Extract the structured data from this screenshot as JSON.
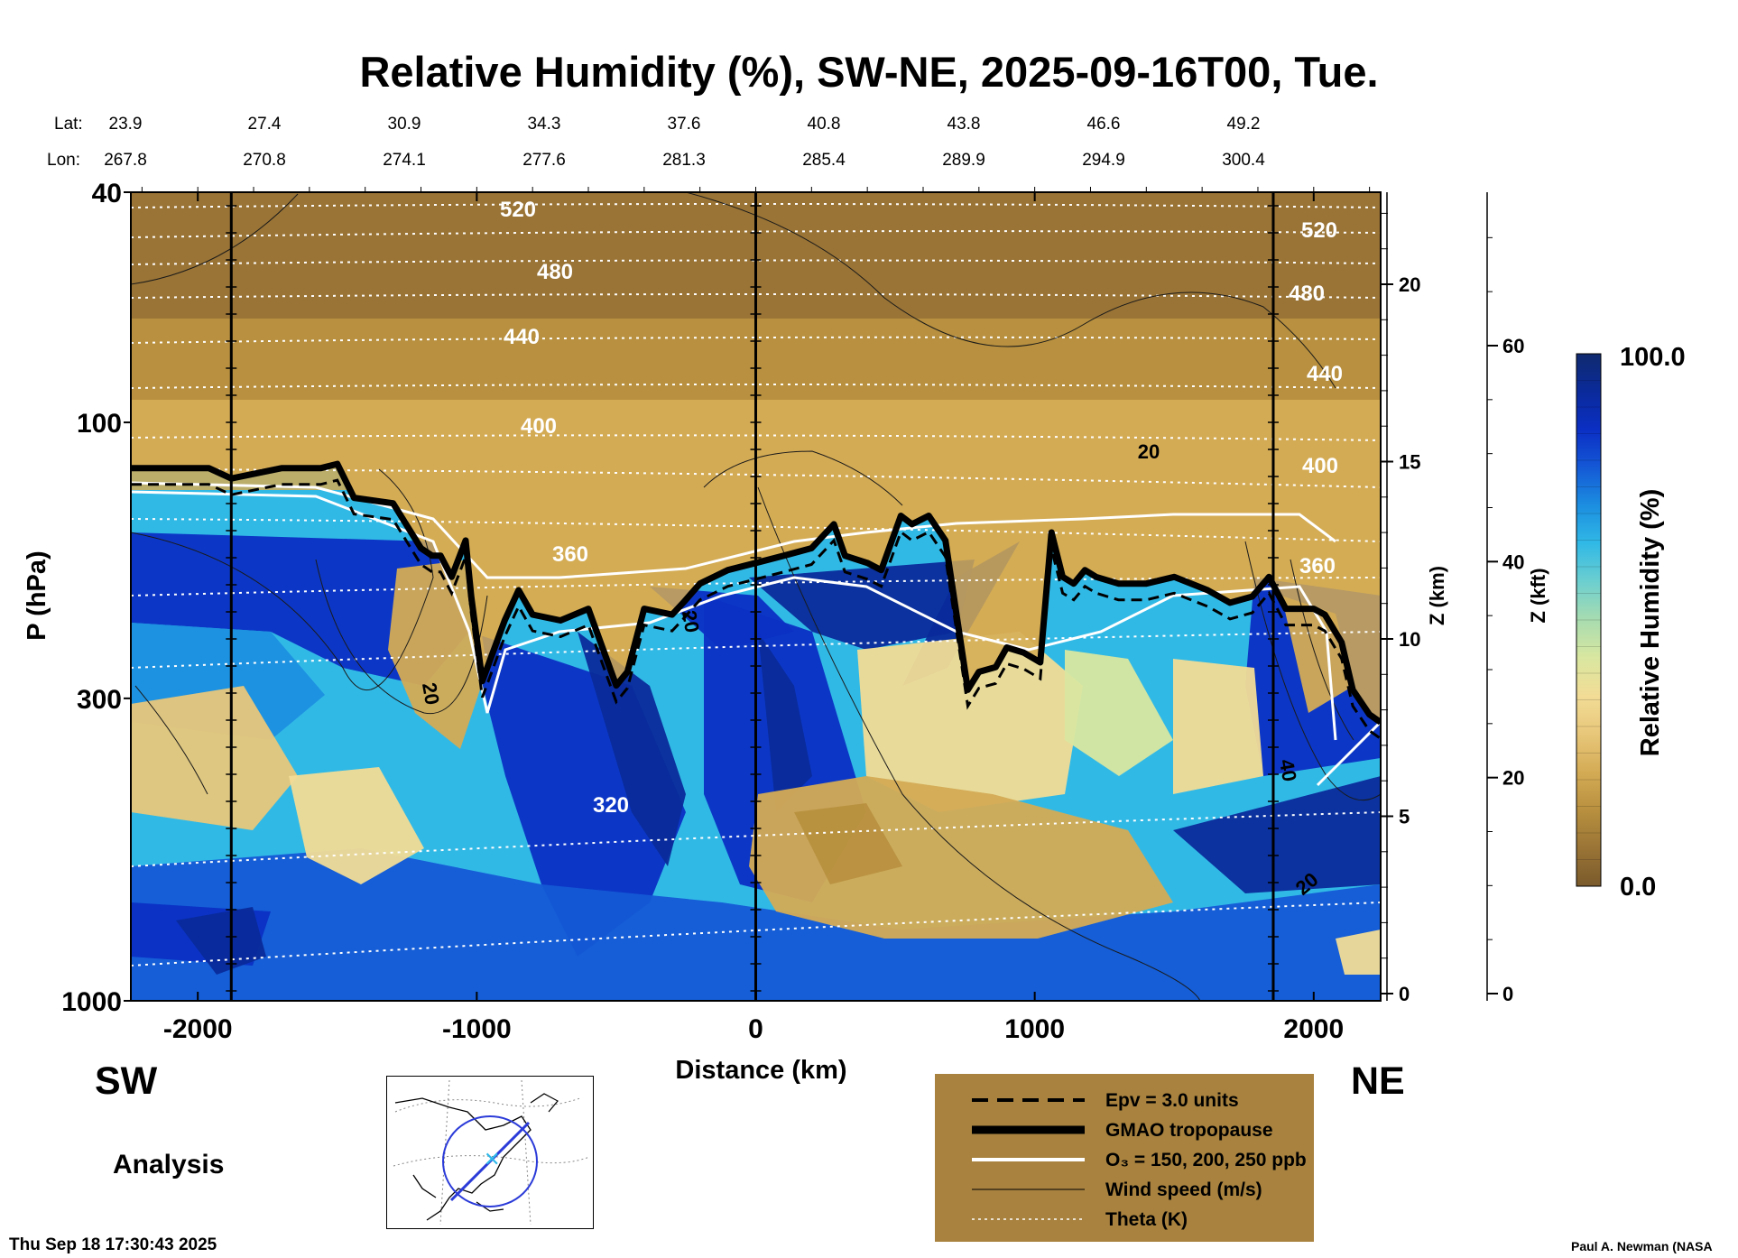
{
  "title": "Relative Humidity (%), SW-NE, 2025-09-16T00, Tue.",
  "lat_label": "Lat:",
  "lon_label": "Lon:",
  "lat_values": [
    "23.9",
    "27.4",
    "30.9",
    "34.3",
    "37.6",
    "40.8",
    "43.8",
    "46.6",
    "49.2"
  ],
  "lon_values": [
    "267.8",
    "270.8",
    "274.1",
    "277.6",
    "281.3",
    "285.4",
    "289.9",
    "294.9",
    "300.4"
  ],
  "sw_label": "SW",
  "ne_label": "NE",
  "analysis_label": "Analysis",
  "footer_timestamp": "Thu Sep 18 17:30:43 2025",
  "credit": "Paul A. Newman (NASA",
  "legend": {
    "epv": "Epv = 3.0 units",
    "tropopause": "GMAO tropopause",
    "ozone": "O₃ = 150, 200, 250 ppb",
    "wind": "Wind speed (m/s)",
    "theta": "Theta (K)"
  },
  "colorbar": {
    "label": "Relative Humidity (%)",
    "max_label": "100.0",
    "min_label": "0.0",
    "colors_low_to_high": [
      "#7a5a2b",
      "#9a7436",
      "#b8903f",
      "#d4ab55",
      "#e8c77a",
      "#f2dc96",
      "#d9e7a0",
      "#a8dcb0",
      "#6dcfcf",
      "#31b9e6",
      "#1c8fe0",
      "#1459d6",
      "#0b2fc4",
      "#0a2a9a",
      "#102a6e"
    ]
  },
  "chart_data": {
    "type": "heatmap",
    "xlabel": "Distance (km)",
    "ylabel": "P (hPa)",
    "xlim": [
      -2240,
      2240
    ],
    "ylim": [
      1000,
      40
    ],
    "x_ticks": [
      -2000,
      -1000,
      0,
      1000,
      2000
    ],
    "y_ticks": [
      40,
      100,
      300,
      1000
    ],
    "y_scale": "log",
    "z_km_label": "Z (km)",
    "z_km_ticks": [
      0,
      5,
      10,
      15,
      20
    ],
    "z_kft_label": "Z (kft)",
    "z_kft_ticks": [
      0,
      20,
      40,
      60
    ],
    "theta_labels": [
      "520",
      "480",
      "440",
      "400",
      "360",
      "320"
    ],
    "wind_labels": [
      "20",
      "20",
      "40",
      "20",
      "20"
    ],
    "tropopause": {
      "x": [
        -2240,
        -1960,
        -1880,
        -1700,
        -1560,
        -1500,
        -1440,
        -1300,
        -1200,
        -1160,
        -1130,
        -1090,
        -1040,
        -1020,
        -980,
        -900,
        -850,
        -800,
        -700,
        -600,
        -500,
        -460,
        -400,
        -300,
        -260,
        -200,
        -100,
        0,
        100,
        200,
        280,
        320,
        400,
        450,
        520,
        560,
        620,
        680,
        760,
        800,
        860,
        900,
        960,
        1020,
        1060,
        1100,
        1140,
        1180,
        1220,
        1300,
        1400,
        1500,
        1620,
        1700,
        1780,
        1840,
        1900,
        2000,
        2040,
        2100,
        2140,
        2200,
        2240
      ],
      "p": [
        120,
        120,
        125,
        120,
        120,
        118,
        135,
        138,
        165,
        170,
        170,
        185,
        160,
        200,
        280,
        220,
        195,
        215,
        220,
        210,
        285,
        270,
        210,
        215,
        205,
        190,
        180,
        175,
        170,
        165,
        150,
        170,
        175,
        180,
        145,
        150,
        145,
        160,
        290,
        270,
        265,
        245,
        250,
        260,
        155,
        185,
        190,
        180,
        185,
        190,
        190,
        185,
        195,
        205,
        200,
        185,
        210,
        210,
        215,
        240,
        290,
        320,
        330
      ]
    }
  }
}
